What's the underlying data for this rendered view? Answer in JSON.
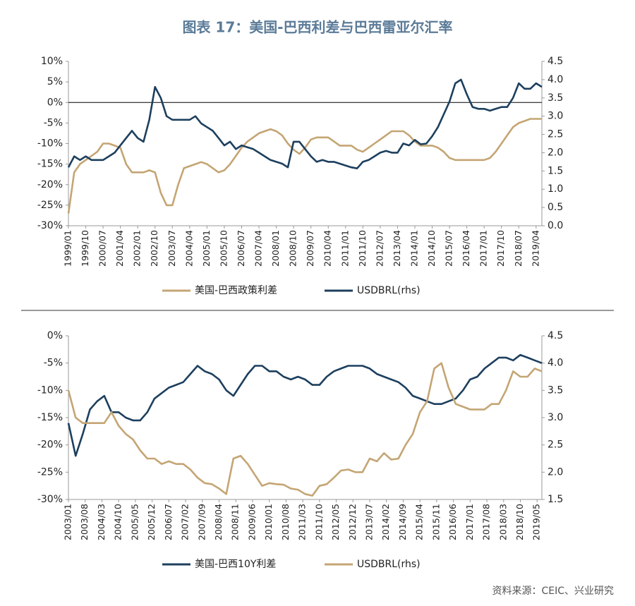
{
  "title": "图表 17：美国-巴西利差与巴西雷亚尔汇率",
  "source": "资料来源：CEIC、兴业研究",
  "chart_data": [
    {
      "type": "line",
      "legend": "bottom",
      "x": [
        "1999/01",
        "1999/04",
        "1999/07",
        "1999/10",
        "2000/01",
        "2000/04",
        "2000/07",
        "2000/10",
        "2001/01",
        "2001/04",
        "2001/07",
        "2001/10",
        "2002/01",
        "2002/04",
        "2002/07",
        "2002/10",
        "2003/01",
        "2003/04",
        "2003/07",
        "2003/10",
        "2004/01",
        "2004/04",
        "2004/07",
        "2004/10",
        "2005/01",
        "2005/04",
        "2005/07",
        "2005/10",
        "2006/01",
        "2006/04",
        "2006/07",
        "2006/10",
        "2007/01",
        "2007/04",
        "2007/07",
        "2007/10",
        "2008/01",
        "2008/04",
        "2008/07",
        "2008/10",
        "2009/01",
        "2009/04",
        "2009/07",
        "2009/10",
        "2010/01",
        "2010/04",
        "2010/07",
        "2010/10",
        "2011/01",
        "2011/04",
        "2011/07",
        "2011/10",
        "2012/01",
        "2012/04",
        "2012/07",
        "2012/10",
        "2013/01",
        "2013/04",
        "2013/07",
        "2013/10",
        "2014/01",
        "2014/04",
        "2014/07",
        "2014/10",
        "2015/01",
        "2015/04",
        "2015/07",
        "2015/10",
        "2016/01",
        "2016/04",
        "2016/07",
        "2016/10",
        "2017/01",
        "2017/04",
        "2017/07",
        "2017/10",
        "2018/01",
        "2018/04",
        "2018/07",
        "2018/10",
        "2019/01",
        "2019/04",
        "2019/07"
      ],
      "xticks": [
        "1999/01",
        "1999/10",
        "2000/07",
        "2001/04",
        "2002/01",
        "2002/10",
        "2003/07",
        "2004/04",
        "2005/01",
        "2005/10",
        "2006/07",
        "2007/04",
        "2008/01",
        "2008/10",
        "2009/07",
        "2010/04",
        "2011/01",
        "2011/10",
        "2012/07",
        "2013/04",
        "2014/01",
        "2014/10",
        "2015/07",
        "2016/04",
        "2017/01",
        "2017/10",
        "2018/07",
        "2019/04"
      ],
      "ylim": [
        -30,
        10
      ],
      "yticks": [
        {
          "value": -30,
          "label": "-30%"
        },
        {
          "value": -25,
          "label": "-25%"
        },
        {
          "value": -20,
          "label": "-20%"
        },
        {
          "value": -15,
          "label": "-15%"
        },
        {
          "value": -10,
          "label": "-10%"
        },
        {
          "value": -5,
          "label": "-5%"
        },
        {
          "value": 0,
          "label": "0%"
        },
        {
          "value": 5,
          "label": "5%"
        },
        {
          "value": 10,
          "label": "10%"
        }
      ],
      "y2lim": [
        0,
        4.5
      ],
      "y2ticks": [
        {
          "value": 0,
          "label": "0.0"
        },
        0.5,
        {
          "value": 1,
          "label": "1.0"
        },
        1.5,
        {
          "value": 2,
          "label": "2.0"
        },
        2.5,
        {
          "value": 3,
          "label": "3.0"
        },
        3.5,
        {
          "value": 4,
          "label": "4.0"
        },
        4.5
      ],
      "series": [
        {
          "name": "美国-巴西政策利差",
          "color": "#c4a574",
          "values": [
            -27,
            -17,
            -15,
            -14,
            -13,
            -12,
            -10,
            -10,
            -10.5,
            -11,
            -15,
            -17,
            -17,
            -17,
            -16.5,
            -17,
            -22,
            -25,
            -25,
            -20,
            -16,
            -15.5,
            -15,
            -14.5,
            -15,
            -16,
            -17,
            -16.5,
            -15,
            -13,
            -11,
            -9.5,
            -8.5,
            -7.5,
            -7,
            -6.5,
            -7,
            -8,
            -10,
            -11.5,
            -12.5,
            -11,
            -9,
            -8.5,
            -8.5,
            -8.5,
            -9.5,
            -10.5,
            -10.5,
            -10.5,
            -11.5,
            -12,
            -11,
            -10,
            -9,
            -8,
            -7,
            -7,
            -7,
            -8,
            -9.5,
            -10.5,
            -10.5,
            -10.5,
            -11,
            -12,
            -13.5,
            -14,
            -14,
            -14,
            -14,
            -14,
            -14,
            -13.5,
            -12,
            -10,
            -8,
            -6,
            -5,
            -4.5,
            -4,
            -4,
            -4
          ]
        },
        {
          "name": "USDBRL(rhs)",
          "color": "#1d3f5e",
          "axis": "y2",
          "values": [
            1.6,
            1.9,
            1.8,
            1.9,
            1.8,
            1.8,
            1.8,
            1.9,
            2.0,
            2.2,
            2.4,
            2.6,
            2.4,
            2.3,
            2.9,
            3.8,
            3.5,
            3.0,
            2.9,
            2.9,
            2.9,
            2.9,
            3.0,
            2.8,
            2.7,
            2.6,
            2.4,
            2.2,
            2.3,
            2.1,
            2.2,
            2.15,
            2.1,
            2.0,
            1.9,
            1.8,
            1.75,
            1.7,
            1.6,
            2.3,
            2.3,
            2.1,
            1.9,
            1.75,
            1.8,
            1.75,
            1.75,
            1.7,
            1.65,
            1.6,
            1.57,
            1.75,
            1.8,
            1.9,
            2.0,
            2.05,
            2.0,
            2.0,
            2.25,
            2.2,
            2.35,
            2.23,
            2.25,
            2.45,
            2.7,
            3.05,
            3.4,
            3.9,
            4.0,
            3.6,
            3.25,
            3.2,
            3.2,
            3.15,
            3.2,
            3.25,
            3.25,
            3.5,
            3.9,
            3.75,
            3.75,
            3.9,
            3.8
          ]
        }
      ]
    },
    {
      "type": "line",
      "legend": "bottom",
      "x": [
        "2003/01",
        "2003/04",
        "2003/07",
        "2003/10",
        "2004/01",
        "2004/04",
        "2004/07",
        "2004/10",
        "2005/01",
        "2005/04",
        "2005/07",
        "2005/10",
        "2006/01",
        "2006/04",
        "2006/07",
        "2006/10",
        "2007/01",
        "2007/04",
        "2007/07",
        "2007/10",
        "2008/01",
        "2008/04",
        "2008/07",
        "2008/10",
        "2009/01",
        "2009/04",
        "2009/07",
        "2009/10",
        "2010/01",
        "2010/04",
        "2010/07",
        "2010/10",
        "2011/01",
        "2011/04",
        "2011/07",
        "2011/10",
        "2012/01",
        "2012/04",
        "2012/07",
        "2012/10",
        "2013/01",
        "2013/04",
        "2013/07",
        "2013/10",
        "2014/01",
        "2014/04",
        "2014/07",
        "2014/10",
        "2015/01",
        "2015/04",
        "2015/07",
        "2015/10",
        "2016/01",
        "2016/04",
        "2016/07",
        "2016/10",
        "2017/01",
        "2017/04",
        "2017/07",
        "2017/10",
        "2018/01",
        "2018/04",
        "2018/07",
        "2018/10",
        "2019/01",
        "2019/04",
        "2019/07"
      ],
      "xticks": [
        "2003/01",
        "2003/08",
        "2004/03",
        "2004/10",
        "2005/05",
        "2005/12",
        "2006/07",
        "2007/02",
        "2007/09",
        "2008/04",
        "2008/11",
        "2009/06",
        "2010/01",
        "2010/08",
        "2011/03",
        "2011/10",
        "2012/05",
        "2012/12",
        "2013/07",
        "2014/02",
        "2014/09",
        "2015/04",
        "2015/11",
        "2016/06",
        "2017/01",
        "2017/08",
        "2018/03",
        "2018/10",
        "2019/05"
      ],
      "ylim": [
        -30,
        0
      ],
      "yticks": [
        {
          "value": -30,
          "label": "-30%"
        },
        {
          "value": -25,
          "label": "-25%"
        },
        {
          "value": -20,
          "label": "-20%"
        },
        {
          "value": -15,
          "label": "-15%"
        },
        {
          "value": -10,
          "label": "-10%"
        },
        {
          "value": -5,
          "label": "-5%"
        },
        {
          "value": 0,
          "label": "0%"
        }
      ],
      "y2lim": [
        1.5,
        4.5
      ],
      "y2ticks": [
        1.5,
        {
          "value": 2,
          "label": "2.0"
        },
        2.5,
        {
          "value": 3,
          "label": "3.0"
        },
        3.5,
        {
          "value": 4,
          "label": "4.0"
        },
        4.5
      ],
      "series": [
        {
          "name": "美国-巴西10Y利差",
          "color": "#1d3f5e",
          "values": [
            -16,
            -22,
            -18,
            -13.5,
            -12,
            -11,
            -14,
            -14,
            -15,
            -15.5,
            -15.5,
            -14,
            -11.5,
            -10.5,
            -9.5,
            -9,
            -8.5,
            -7,
            -5.5,
            -6.5,
            -7,
            -8,
            -10,
            -11,
            -9,
            -7,
            -5.5,
            -5.5,
            -6.5,
            -6.5,
            -7.5,
            -8,
            -7.5,
            -8,
            -9,
            -9,
            -7.5,
            -6.5,
            -6,
            -5.5,
            -5.5,
            -5.5,
            -6,
            -7,
            -7.5,
            -8,
            -8.5,
            -9.5,
            -11,
            -11.5,
            -12,
            -12.5,
            -12.5,
            -12,
            -11.5,
            -10,
            -8,
            -7.5,
            -6,
            -5,
            -4,
            -4,
            -4.5,
            -3.5,
            -4,
            -4.5,
            -5
          ]
        },
        {
          "name": "USDBRL(rhs)",
          "color": "#c4a574",
          "axis": "y2",
          "values": [
            3.5,
            3.0,
            2.9,
            2.9,
            2.9,
            2.9,
            3.1,
            2.85,
            2.7,
            2.6,
            2.4,
            2.25,
            2.25,
            2.15,
            2.2,
            2.15,
            2.15,
            2.05,
            1.9,
            1.8,
            1.78,
            1.7,
            1.6,
            2.25,
            2.3,
            2.15,
            1.95,
            1.75,
            1.8,
            1.78,
            1.77,
            1.7,
            1.68,
            1.6,
            1.57,
            1.75,
            1.78,
            1.9,
            2.03,
            2.05,
            2.0,
            2.0,
            2.25,
            2.2,
            2.35,
            2.23,
            2.25,
            2.5,
            2.7,
            3.1,
            3.3,
            3.9,
            4.0,
            3.55,
            3.25,
            3.2,
            3.15,
            3.15,
            3.15,
            3.25,
            3.25,
            3.5,
            3.85,
            3.75,
            3.75,
            3.9,
            3.85
          ]
        }
      ]
    }
  ]
}
